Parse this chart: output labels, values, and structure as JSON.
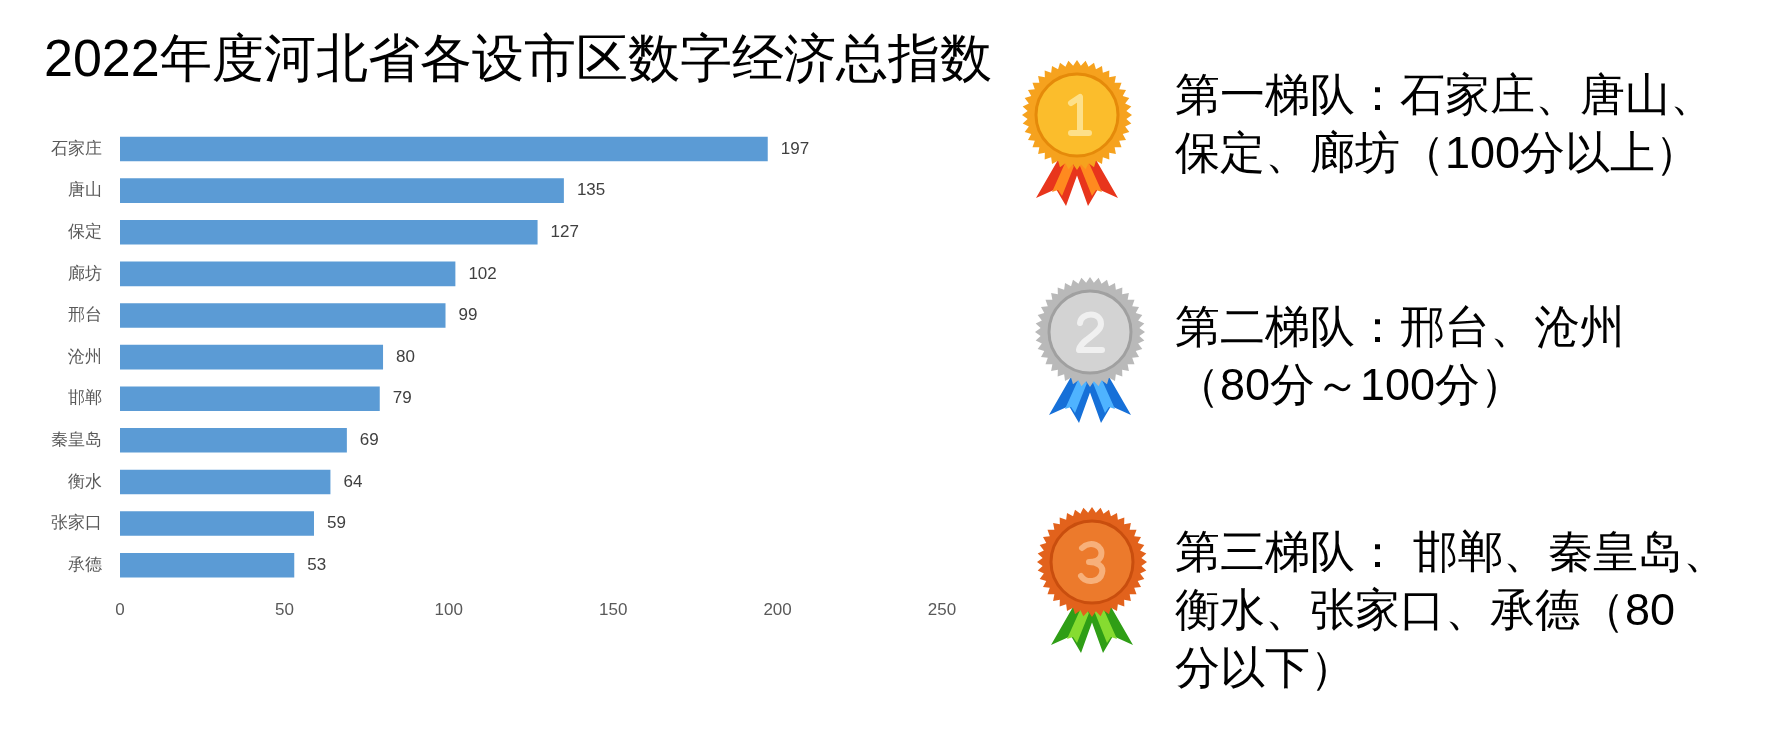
{
  "chart_data": {
    "type": "bar",
    "orientation": "horizontal",
    "title": "2022年度河北省各设市区数字经济总指数",
    "categories": [
      "石家庄",
      "唐山",
      "保定",
      "廊坊",
      "邢台",
      "沧州",
      "邯郸",
      "秦皇岛",
      "衡水",
      "张家口",
      "承德"
    ],
    "values": [
      197,
      135,
      127,
      102,
      99,
      80,
      79,
      69,
      64,
      59,
      53
    ],
    "color": "#5b9bd5",
    "xlim": [
      0,
      250
    ],
    "xticks": [
      0,
      50,
      100,
      150,
      200,
      250
    ],
    "data_labels": true,
    "annotations": [
      "第一梯队：石家庄、唐山、保定、廊坊（100分以上）",
      "第二梯队：邢台、沧州（80分～100分）",
      "第三梯队： 邯郸、秦皇岛、衡水、张家口、承德（80分以下）"
    ]
  }
}
